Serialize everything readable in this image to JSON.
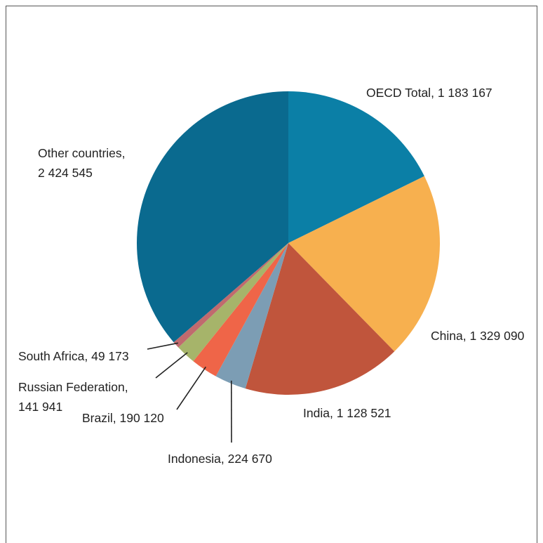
{
  "chart_data": {
    "type": "pie",
    "slices": [
      {
        "label": "OECD Total",
        "value_text": "1 183 167",
        "value": 1183167,
        "color": "#0b7fa6"
      },
      {
        "label": "China",
        "value_text": "1 329 090",
        "value": 1329090,
        "color": "#f7b04f"
      },
      {
        "label": "India",
        "value_text": "1 128 521",
        "value": 1128521,
        "color": "#c0553c"
      },
      {
        "label": "Indonesia",
        "value_text": "224 670",
        "value": 224670,
        "color": "#7c9db4"
      },
      {
        "label": "Brazil",
        "value_text": "190 120",
        "value": 190120,
        "color": "#ef6548"
      },
      {
        "label": "Russian Federation",
        "value_text": "141 941",
        "value": 141941,
        "color": "#a6b46a"
      },
      {
        "label": "South Africa",
        "value_text": "49 173",
        "value": 49173,
        "color": "#c06a6e"
      },
      {
        "label": "Other countries",
        "value_text": "2 424 545",
        "value": 2424545,
        "color": "#0a6a8f"
      }
    ]
  }
}
